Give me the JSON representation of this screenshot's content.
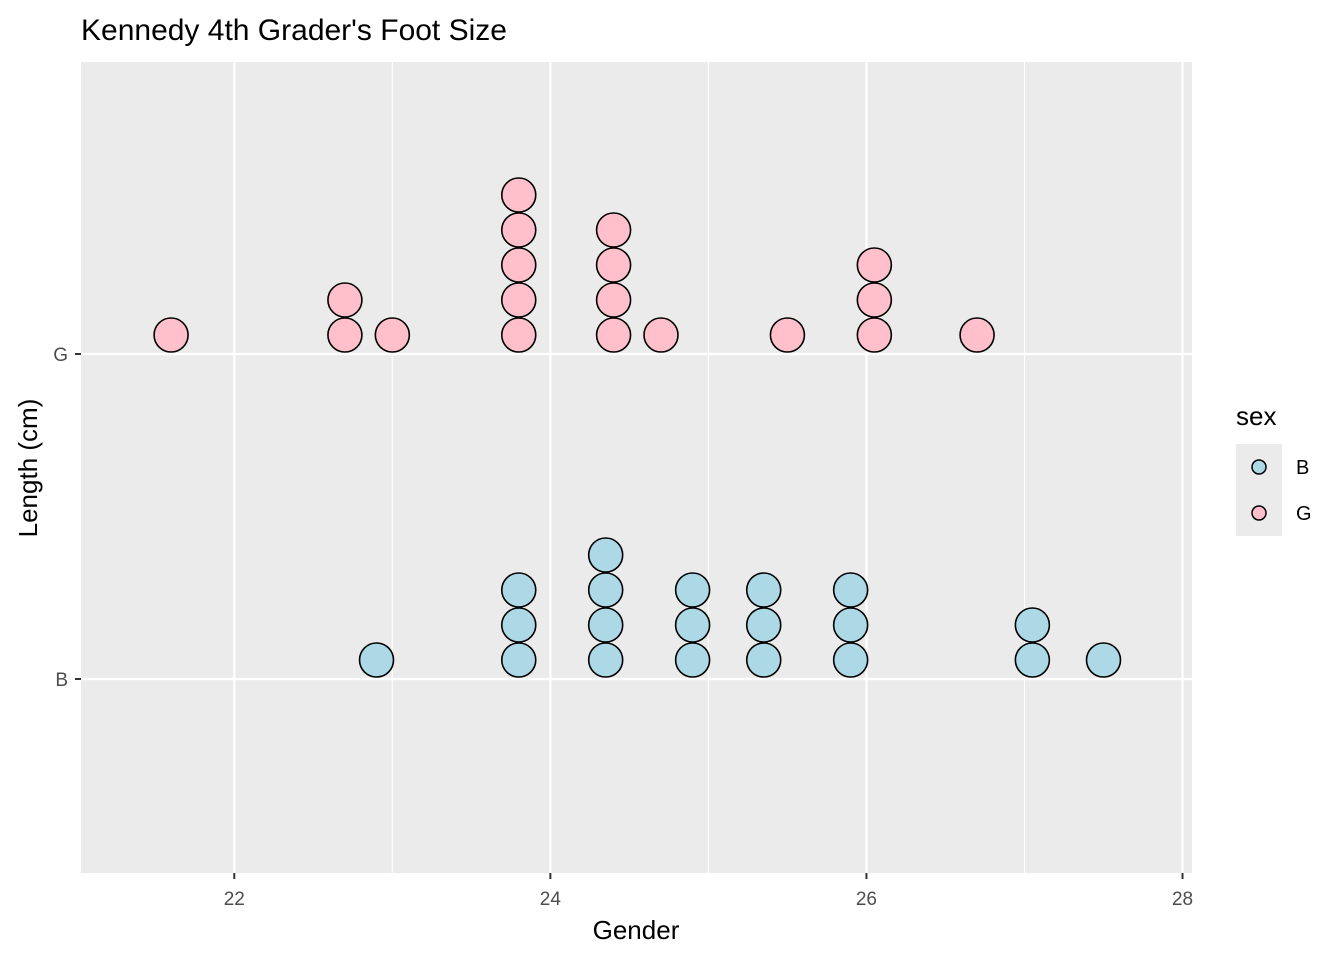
{
  "chart_data": {
    "type": "scatter",
    "subtype": "dotplot",
    "title": "Kennedy 4th Grader's Foot Size",
    "xlabel": "Gender",
    "ylabel": "Length (cm)",
    "x_ticks": [
      "22",
      "24",
      "26",
      "28"
    ],
    "y_categories": [
      "B",
      "G"
    ],
    "xlim": [
      21.03,
      28.06
    ],
    "grid": true,
    "legend": {
      "title": "sex",
      "position": "right",
      "entries": [
        {
          "label": "B",
          "color": "#add8e6"
        },
        {
          "label": "G",
          "color": "#ffc0cb"
        }
      ]
    },
    "series": [
      {
        "name": "B",
        "color": "#add8e6",
        "bins": [
          {
            "x": 22.9,
            "count": 1
          },
          {
            "x": 23.8,
            "count": 3
          },
          {
            "x": 24.35,
            "count": 4
          },
          {
            "x": 24.9,
            "count": 3
          },
          {
            "x": 25.35,
            "count": 3
          },
          {
            "x": 25.9,
            "count": 3
          },
          {
            "x": 27.05,
            "count": 2
          },
          {
            "x": 27.5,
            "count": 1
          }
        ]
      },
      {
        "name": "G",
        "color": "#ffc0cb",
        "bins": [
          {
            "x": 21.6,
            "count": 1
          },
          {
            "x": 22.7,
            "count": 2
          },
          {
            "x": 23.0,
            "count": 1
          },
          {
            "x": 23.8,
            "count": 5
          },
          {
            "x": 24.4,
            "count": 4
          },
          {
            "x": 24.7,
            "count": 1
          },
          {
            "x": 25.5,
            "count": 1
          },
          {
            "x": 26.05,
            "count": 3
          },
          {
            "x": 26.7,
            "count": 1
          }
        ]
      }
    ]
  }
}
